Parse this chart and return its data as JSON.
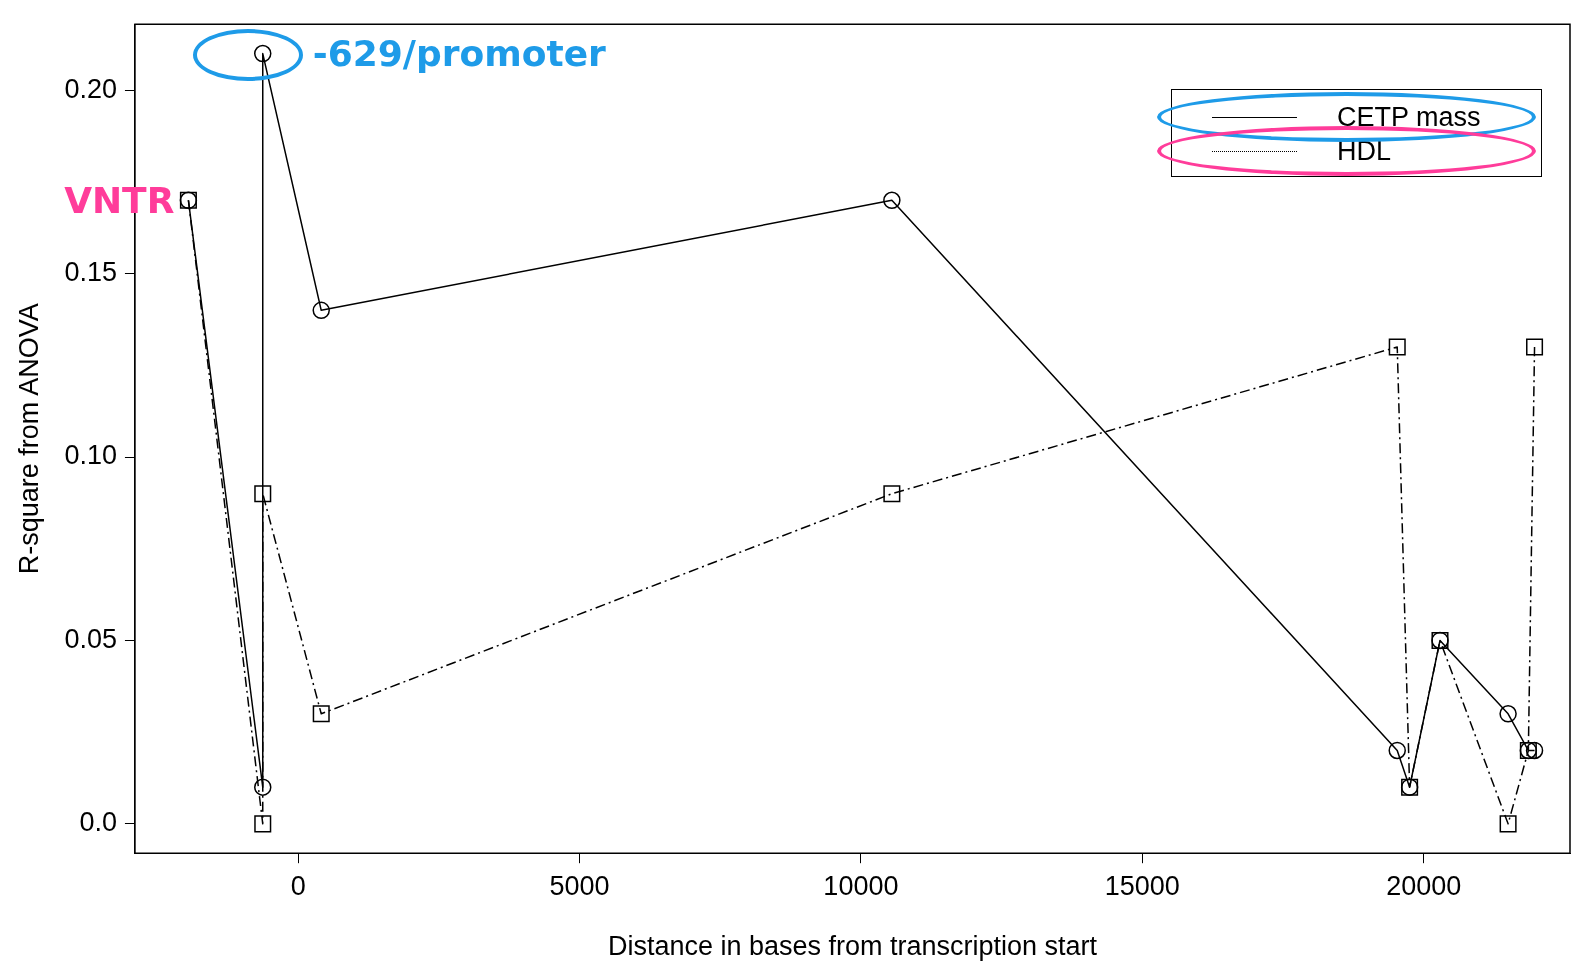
{
  "chart_data": {
    "type": "line",
    "xlabel": "Distance in bases from transcription start",
    "ylabel": "R-square from ANOVA",
    "xlim": [
      -2900,
      22600
    ],
    "xticks": [
      0,
      5000,
      10000,
      15000,
      20000
    ],
    "ylim": [
      -0.008,
      0.218
    ],
    "yticks": [
      {
        "value": 0,
        "label": "0.0"
      },
      0.05,
      {
        "value": 0.1,
        "label": "0.10"
      },
      0.15,
      {
        "value": 0.2,
        "label": "0.20"
      }
    ],
    "grid": false,
    "legend": "top right",
    "series": [
      {
        "name": "CETP mass",
        "color": "#000000",
        "marker": "circle",
        "line_style": "solid",
        "x": [
          -1950,
          -629,
          -629,
          410,
          10550,
          19530,
          19750,
          20290,
          21500,
          21860,
          21970
        ],
        "values": [
          0.17,
          0.01,
          0.21,
          0.14,
          0.17,
          0.02,
          0.01,
          0.05,
          0.03,
          0.02,
          0.02
        ]
      },
      {
        "name": "HDL",
        "color": "#000000",
        "marker": "square",
        "line_style": "dashed",
        "x": [
          -1950,
          -629,
          -629,
          410,
          10550,
          19530,
          19750,
          20290,
          21500,
          21860,
          21970
        ],
        "values": [
          0.17,
          0,
          0.09,
          0.03,
          0.09,
          0.13,
          0.01,
          0.05,
          0,
          0.02,
          0.13
        ]
      }
    ],
    "annotations": [
      {
        "text": "-629/promoter",
        "x": -629,
        "y": 0.21
      },
      {
        "text": "VNTR",
        "x": -1950,
        "y": 0.17
      }
    ]
  }
}
